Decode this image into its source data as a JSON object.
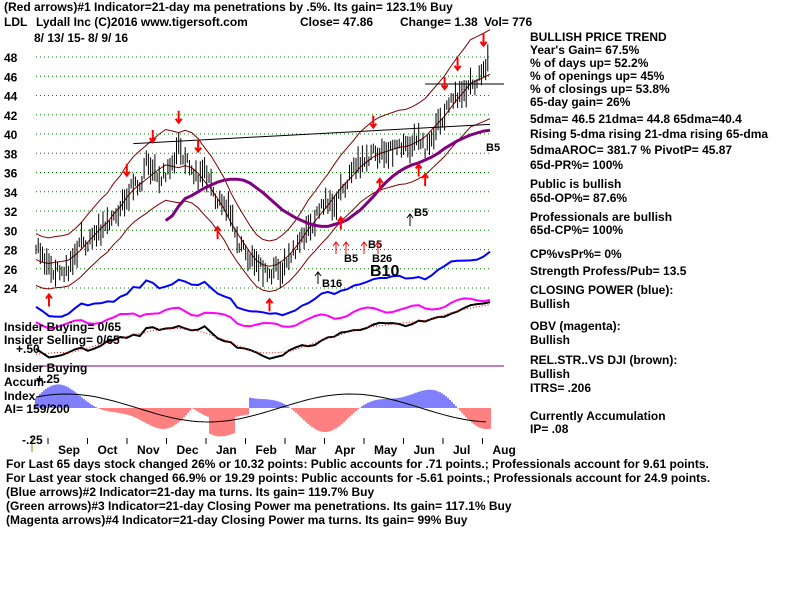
{
  "header": {
    "line1": "(Red arrows)#1 Indicator=21-day ma penetrations by .5%. Its gain= 123.1% Buy",
    "ticker": "LDL",
    "company": "Lydall Inc  (C)2016 www.tigersoft.com",
    "close": "Close=  47.86",
    "change": "Change= 1.38",
    "vol": "Vol=  776",
    "dates": "8/ 13/ 15-  8/ 9/ 16"
  },
  "right_panel": [
    "BULLISH PRICE TREND",
    "   Year's Gain= 67.5%",
    "   % of days up= 52.2%",
    "   % of openings up= 45%",
    "   % of closings up= 53.8%",
    "   65-day gain= 26%",
    "5dma= 46.5 21dma= 44.8 65dma=40.4",
    "Rising 5-dma rising 21-dma rising 65-dma",
    "5dmaAROC= 381.7 %  PivotP= 45.87",
    "   65d-PR%= 100%",
    "Public is bullish",
    "   65d-OP%= 87.6%",
    "Professionals are bullish",
    "   65d-CP%= 100%",
    "CP%vsPr%=  0%",
    "Strength Profess/Pub= 13.5",
    "CLOSING POWER (blue):",
    "Bullish",
    "OBV (magenta):",
    "Bullish",
    "REL.STR..VS DJI (brown):",
    "Bullish",
    "ITRS= .206",
    "Currently Accumulation",
    "   IP=  .08"
  ],
  "left_labels": {
    "insider_buying_1": "Insider Buying= 0/65",
    "insider_selling": "Insider Selling= 0/65",
    "plus50": "+.50",
    "insider_buying_2": "Insider Buying",
    "accum": "Accum",
    "plus25": "+.25",
    "index": "Index",
    "ai": "AI= 159/200",
    "minus25": "-.25"
  },
  "annotations": [
    "B5",
    "B26",
    "B5",
    "B10",
    "B16",
    "B5",
    "B5"
  ],
  "footer": [
    "For Last 65 days stock changed  26% or  10.32 points:  Public accounts for  .71 points.;  Professionals account for  9.61 points.",
    "For Last year stock changed  66.9% or  19.29 points:  Public accounts for  -5.61 points.;  Professionals account for  24.9 points.",
    "(Blue arrows)#2 Indicator=21-day ma turns. Its gain= 119.7% Buy",
    "(Green arrows)#3 Indicator=21-day Closing Power ma penetrations. Its gain= 117.1% Buy",
    "(Magenta arrows)#4 Indicator=21-day Closing Power ma turns. Its gain= 99% Buy"
  ],
  "colors": {
    "price": "#000000",
    "ma": "#800080",
    "band": "#800000",
    "closing_power": "#0000ff",
    "obv": "#ff00ff",
    "rel_str": "#000000",
    "accum_pos": "#0000ff",
    "accum_neg": "#ff0000",
    "arrow": "#ff0000",
    "grid": "#008000"
  },
  "chart_data": {
    "type": "line",
    "title": "",
    "xlabel": "",
    "ylabel": "",
    "ylim": [
      22,
      49
    ],
    "y_ticks": [
      24,
      26,
      28,
      30,
      32,
      34,
      36,
      38,
      40,
      42,
      44,
      46,
      48
    ],
    "x_ticks": [
      "Sep",
      "Oct",
      "Nov",
      "Dec",
      "Jan",
      "Feb",
      "Mar",
      "Apr",
      "May",
      "Jun",
      "Jul",
      "Aug"
    ],
    "series": [
      {
        "values": [
          28.5,
          27.5,
          26.0,
          25.8,
          25.5,
          26.0,
          27.5,
          29.0,
          28.5,
          29.5,
          30.0,
          31.0,
          31.0,
          32.5,
          33.0,
          35.0,
          34.5,
          37.0,
          36.5,
          35.0,
          36.0,
          37.0,
          38.5,
          37.5,
          36.0,
          35.5,
          36.5,
          34.5,
          33.0,
          32.5,
          32.0,
          29.0,
          28.0,
          27.0,
          26.5,
          26.0,
          25.5,
          26.0,
          25.8,
          27.0,
          28.0,
          29.5,
          30.0,
          31.0,
          32.5,
          33.0,
          32.5,
          34.0,
          35.0,
          36.5,
          37.0,
          37.5,
          38.0,
          38.0,
          37.8,
          38.5,
          39.0,
          38.5,
          39.0,
          39.5,
          38.5,
          39.5,
          41.0,
          42.0,
          43.5,
          44.0,
          44.5,
          45.0,
          45.5,
          46.5,
          47.86
        ]
      },
      {
        "values": [
          null,
          null,
          null,
          null,
          null,
          null,
          null,
          null,
          null,
          null,
          null,
          null,
          null,
          null,
          null,
          null,
          null,
          null,
          null,
          null,
          31.0,
          31.5,
          32.5,
          33.3,
          33.6,
          34.0,
          34.4,
          34.7,
          35.0,
          35.2,
          35.3,
          35.3,
          35.2,
          34.9,
          34.4,
          33.9,
          33.3,
          32.7,
          32.1,
          31.7,
          31.3,
          31.0,
          30.7,
          30.5,
          30.4,
          30.4,
          30.6,
          30.8,
          31.1,
          31.6,
          32.1,
          32.8,
          33.5,
          34.3,
          35.0,
          35.6,
          36.1,
          36.5,
          36.8,
          37.0,
          37.3,
          37.6,
          38.0,
          38.5,
          38.9,
          39.3,
          39.6,
          39.9,
          40.1,
          40.3,
          40.4
        ]
      }
    ]
  }
}
